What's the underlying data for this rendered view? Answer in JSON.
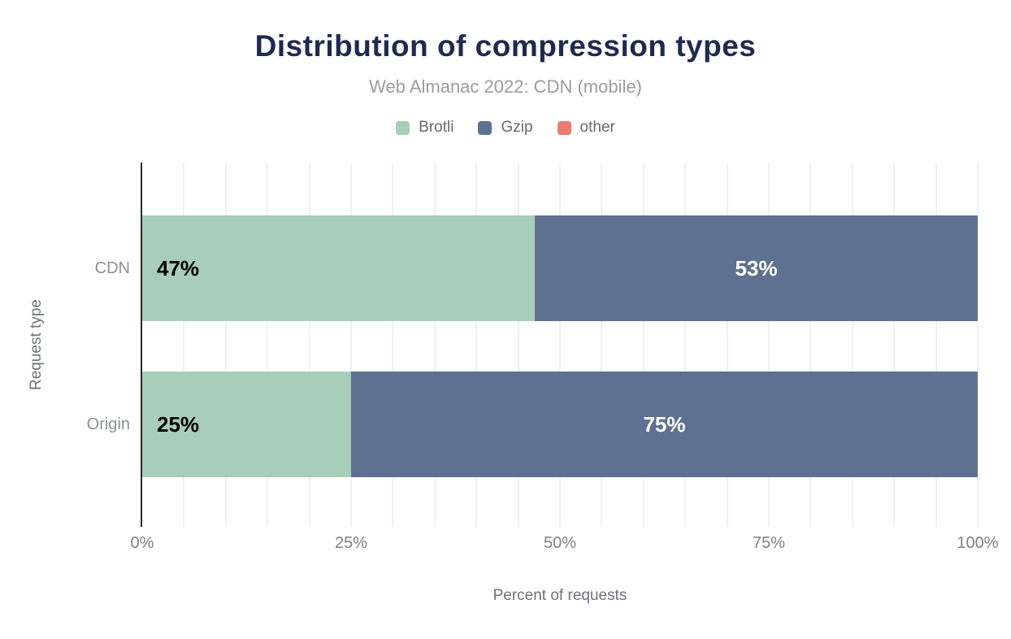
{
  "colors": {
    "title": "#1e2b4e",
    "subtitle": "#9c9c9c",
    "axis_text": "#7d8185",
    "axis_line": "#28292b",
    "gridline": "#f1f1f1",
    "background": "#ffffff"
  },
  "chart_data": {
    "type": "bar",
    "orientation": "horizontal",
    "stacked": true,
    "title": "Distribution of compression types",
    "subtitle": "Web Almanac 2022: CDN (mobile)",
    "xlabel": "Percent of requests",
    "ylabel": "Request type",
    "categories": [
      "CDN",
      "Origin"
    ],
    "series": [
      {
        "name": "Brotli",
        "color": "#a8cdb8",
        "values": [
          47,
          25
        ],
        "label_color": "#000000",
        "label_align": "start"
      },
      {
        "name": "Gzip",
        "color": "#5f7190",
        "values": [
          53,
          75
        ],
        "label_color": "#ffffff",
        "label_align": "center"
      },
      {
        "name": "other",
        "color": "#e97b70",
        "values": [
          0,
          0
        ],
        "label_color": "#000000",
        "label_align": "center"
      }
    ],
    "data_labels": [
      [
        "47%",
        "53%",
        ""
      ],
      [
        "25%",
        "75%",
        ""
      ]
    ],
    "xlim": [
      0,
      100
    ],
    "x_ticks": [
      "0%",
      "25%",
      "50%",
      "75%",
      "100%"
    ],
    "x_tick_values": [
      0,
      25,
      50,
      75,
      100
    ],
    "gridline_step": 5,
    "grid": true,
    "legend_position": "top"
  }
}
